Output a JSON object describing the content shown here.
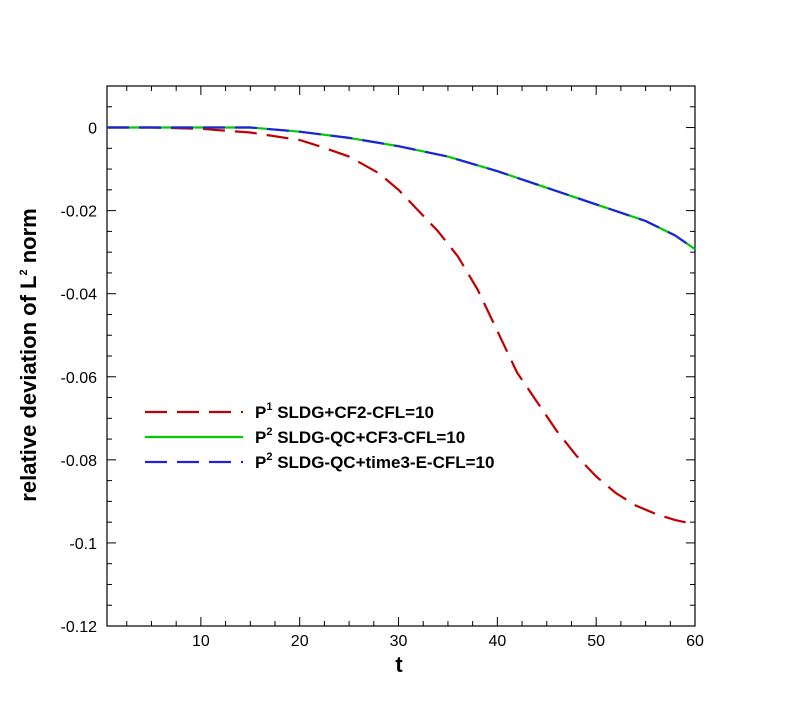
{
  "chart_data": {
    "type": "line",
    "xlabel": "t",
    "ylabel": "relative deviation of L",
    "ylabel_sup": "2",
    "ylabel_tail": " norm",
    "xlim": [
      0.5,
      60
    ],
    "ylim": [
      -0.12,
      0.01
    ],
    "x_ticks": [
      10,
      20,
      30,
      40,
      50,
      60
    ],
    "x_minor_step": 2.5,
    "y_ticks": [
      0,
      -0.02,
      -0.04,
      -0.06,
      -0.08,
      -0.1,
      -0.12
    ],
    "y_tick_labels": [
      "0",
      "-0.02",
      "-0.04",
      "-0.06",
      "-0.08",
      "-0.1",
      "-0.12"
    ],
    "y_minor_step": 0.005,
    "grid": false,
    "legend_position": "center-left",
    "series": [
      {
        "name": "SLDG+CF2-CFL=10",
        "prefix": "P",
        "sup": "1",
        "color": "#c00000",
        "dash": "dashed",
        "x": [
          0.5,
          5,
          10,
          15,
          20,
          22,
          25,
          28,
          30,
          32,
          34,
          36,
          38,
          40,
          42,
          44,
          46,
          48,
          50,
          52,
          54,
          56,
          58,
          60
        ],
        "y": [
          0,
          0,
          -0.0003,
          -0.0012,
          -0.003,
          -0.0045,
          -0.007,
          -0.011,
          -0.015,
          -0.02,
          -0.025,
          -0.031,
          -0.039,
          -0.049,
          -0.059,
          -0.066,
          -0.073,
          -0.079,
          -0.084,
          -0.088,
          -0.091,
          -0.093,
          -0.0945,
          -0.0955
        ]
      },
      {
        "name": "SLDG-QC+CF3-CFL=10",
        "prefix": "P",
        "sup": "2",
        "color": "#00cc00",
        "dash": "solid",
        "x": [
          0.5,
          10,
          15,
          20,
          25,
          30,
          35,
          40,
          45,
          50,
          55,
          58,
          60
        ],
        "y": [
          0,
          0,
          0,
          -0.001,
          -0.0025,
          -0.0045,
          -0.007,
          -0.0105,
          -0.0145,
          -0.0185,
          -0.0225,
          -0.026,
          -0.0293
        ]
      },
      {
        "name": "SLDG-QC+time3-E-CFL=10",
        "prefix": "P",
        "sup": "2",
        "color": "#2020e0",
        "dash": "dashed",
        "x": [
          0.5,
          10,
          15,
          20,
          25,
          30,
          35,
          40,
          45,
          50,
          55,
          58,
          60
        ],
        "y": [
          0,
          0,
          0,
          -0.001,
          -0.0025,
          -0.0045,
          -0.007,
          -0.0105,
          -0.0145,
          -0.0185,
          -0.0225,
          -0.026,
          -0.0293
        ]
      }
    ]
  }
}
